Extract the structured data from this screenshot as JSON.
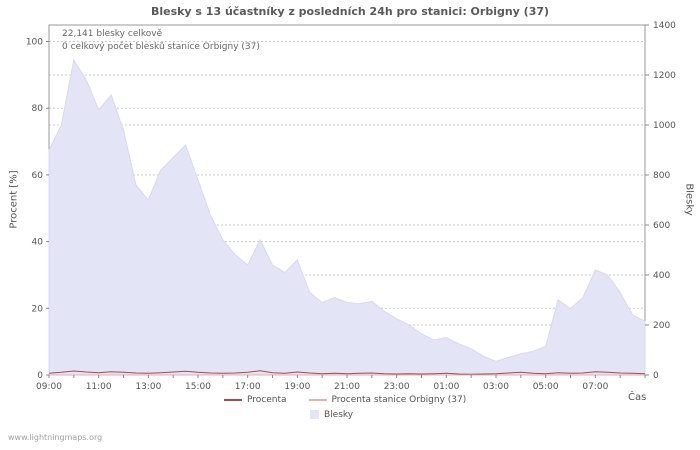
{
  "title": "Blesky s 13 účastníky z posledních 24h pro stanici: Orbigny (37)",
  "annotations": {
    "total": "22,141 blesky celkově",
    "station": "0 celkový počet blesků stanice Orbigny (37)"
  },
  "footer": "www.lightningmaps.org",
  "axes": {
    "left_label": "Procent  [%]",
    "right_label": "Blesky",
    "x_label": "Čas",
    "left_ticks": [
      0,
      20,
      40,
      60,
      80,
      100
    ],
    "right_ticks": [
      0,
      200,
      400,
      600,
      800,
      1000,
      1200,
      1400
    ],
    "x_tick_labels": [
      "09:00",
      "11:00",
      "13:00",
      "15:00",
      "17:00",
      "19:00",
      "21:00",
      "23:00",
      "01:00",
      "03:00",
      "05:00",
      "07:00"
    ],
    "x_tick_hours": [
      0,
      2,
      4,
      6,
      8,
      10,
      12,
      14,
      16,
      18,
      20,
      22
    ]
  },
  "legend": [
    {
      "label": "Procenta",
      "swatch": "line",
      "color": "#a34d4d"
    },
    {
      "label": "Procenta stanice Orbigny (37)",
      "swatch": "line",
      "color": "#f0aaaa"
    },
    {
      "label": "Blesky",
      "swatch": "area",
      "color": "#e4e4f7"
    }
  ],
  "chart_data": {
    "type": "area",
    "title": "Blesky s 13 účastníky z posledních 24h pro stanici: Orbigny (37)",
    "x_start": "09:00",
    "x_step_hours": 0.5,
    "x_span_hours": 24,
    "left_max": 100,
    "right_max": 1400,
    "grid": true,
    "series": [
      {
        "name": "Blesky",
        "type": "area",
        "axis": "right",
        "color": "#e4e4f7",
        "edge_color": "#d8d8f0",
        "values": [
          900,
          1000,
          1260,
          1180,
          1060,
          1120,
          980,
          760,
          700,
          820,
          870,
          920,
          780,
          640,
          540,
          480,
          440,
          540,
          440,
          410,
          460,
          330,
          290,
          310,
          290,
          285,
          295,
          255,
          225,
          200,
          165,
          140,
          150,
          125,
          105,
          75,
          55,
          70,
          85,
          95,
          115,
          300,
          265,
          310,
          420,
          400,
          330,
          240,
          215
        ]
      },
      {
        "name": "Procenta",
        "type": "line",
        "axis": "left",
        "color": "#a34d4d",
        "values": [
          0.5,
          0.8,
          1.2,
          0.9,
          0.7,
          1.0,
          0.8,
          0.6,
          0.5,
          0.7,
          0.9,
          1.1,
          0.8,
          0.6,
          0.5,
          0.6,
          0.8,
          1.3,
          0.7,
          0.5,
          0.9,
          0.6,
          0.4,
          0.5,
          0.4,
          0.5,
          0.6,
          0.4,
          0.3,
          0.4,
          0.3,
          0.4,
          0.5,
          0.3,
          0.2,
          0.3,
          0.4,
          0.6,
          0.8,
          0.5,
          0.4,
          0.7,
          0.5,
          0.6,
          1.0,
          0.8,
          0.6,
          0.5,
          0.4
        ]
      },
      {
        "name": "Procenta stanice Orbigny (37)",
        "type": "line",
        "axis": "left",
        "color": "#f0aaaa",
        "values": [
          0,
          0,
          0,
          0,
          0,
          0,
          0,
          0,
          0,
          0,
          0,
          0,
          0,
          0,
          0,
          0,
          0,
          0,
          0,
          0,
          0,
          0,
          0,
          0,
          0,
          0,
          0,
          0,
          0,
          0,
          0,
          0,
          0,
          0,
          0,
          0,
          0,
          0,
          0,
          0,
          0,
          0,
          0,
          0,
          0,
          0,
          0,
          0,
          0
        ]
      }
    ]
  }
}
